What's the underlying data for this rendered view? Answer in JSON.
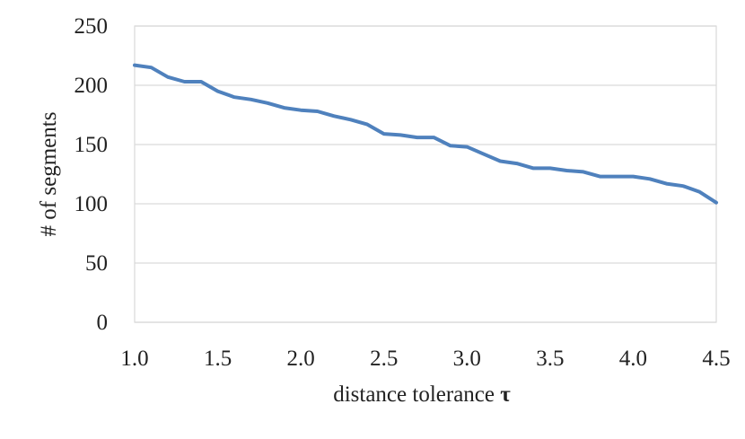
{
  "chart_data": {
    "type": "line",
    "title": "",
    "xlabel": "distance tolerance ",
    "xlabel_symbol": "τ",
    "ylabel": "# of segments",
    "xlim": [
      1.0,
      4.5
    ],
    "ylim": [
      0,
      250
    ],
    "x_ticks": [
      "1.0",
      "1.5",
      "2.0",
      "2.5",
      "3.0",
      "3.5",
      "4.0",
      "4.5"
    ],
    "y_ticks": [
      "0",
      "50",
      "100",
      "150",
      "200",
      "250"
    ],
    "grid": "horizontal",
    "legend": "none",
    "line_color": "#4f81bd",
    "series": [
      {
        "x": [
          1.0,
          1.1,
          1.2,
          1.3,
          1.4,
          1.5,
          1.6,
          1.7,
          1.8,
          1.9,
          2.0,
          2.1,
          2.2,
          2.3,
          2.4,
          2.5,
          2.6,
          2.7,
          2.8,
          2.9,
          3.0,
          3.1,
          3.2,
          3.3,
          3.4,
          3.5,
          3.6,
          3.7,
          3.8,
          3.9,
          4.0,
          4.1,
          4.2,
          4.3,
          4.4,
          4.5
        ],
        "values": [
          217,
          215,
          207,
          203,
          203,
          195,
          190,
          188,
          185,
          181,
          179,
          178,
          174,
          171,
          167,
          159,
          158,
          156,
          156,
          149,
          148,
          142,
          136,
          134,
          130,
          130,
          128,
          127,
          123,
          123,
          123,
          121,
          117,
          115,
          110,
          101
        ]
      }
    ]
  }
}
